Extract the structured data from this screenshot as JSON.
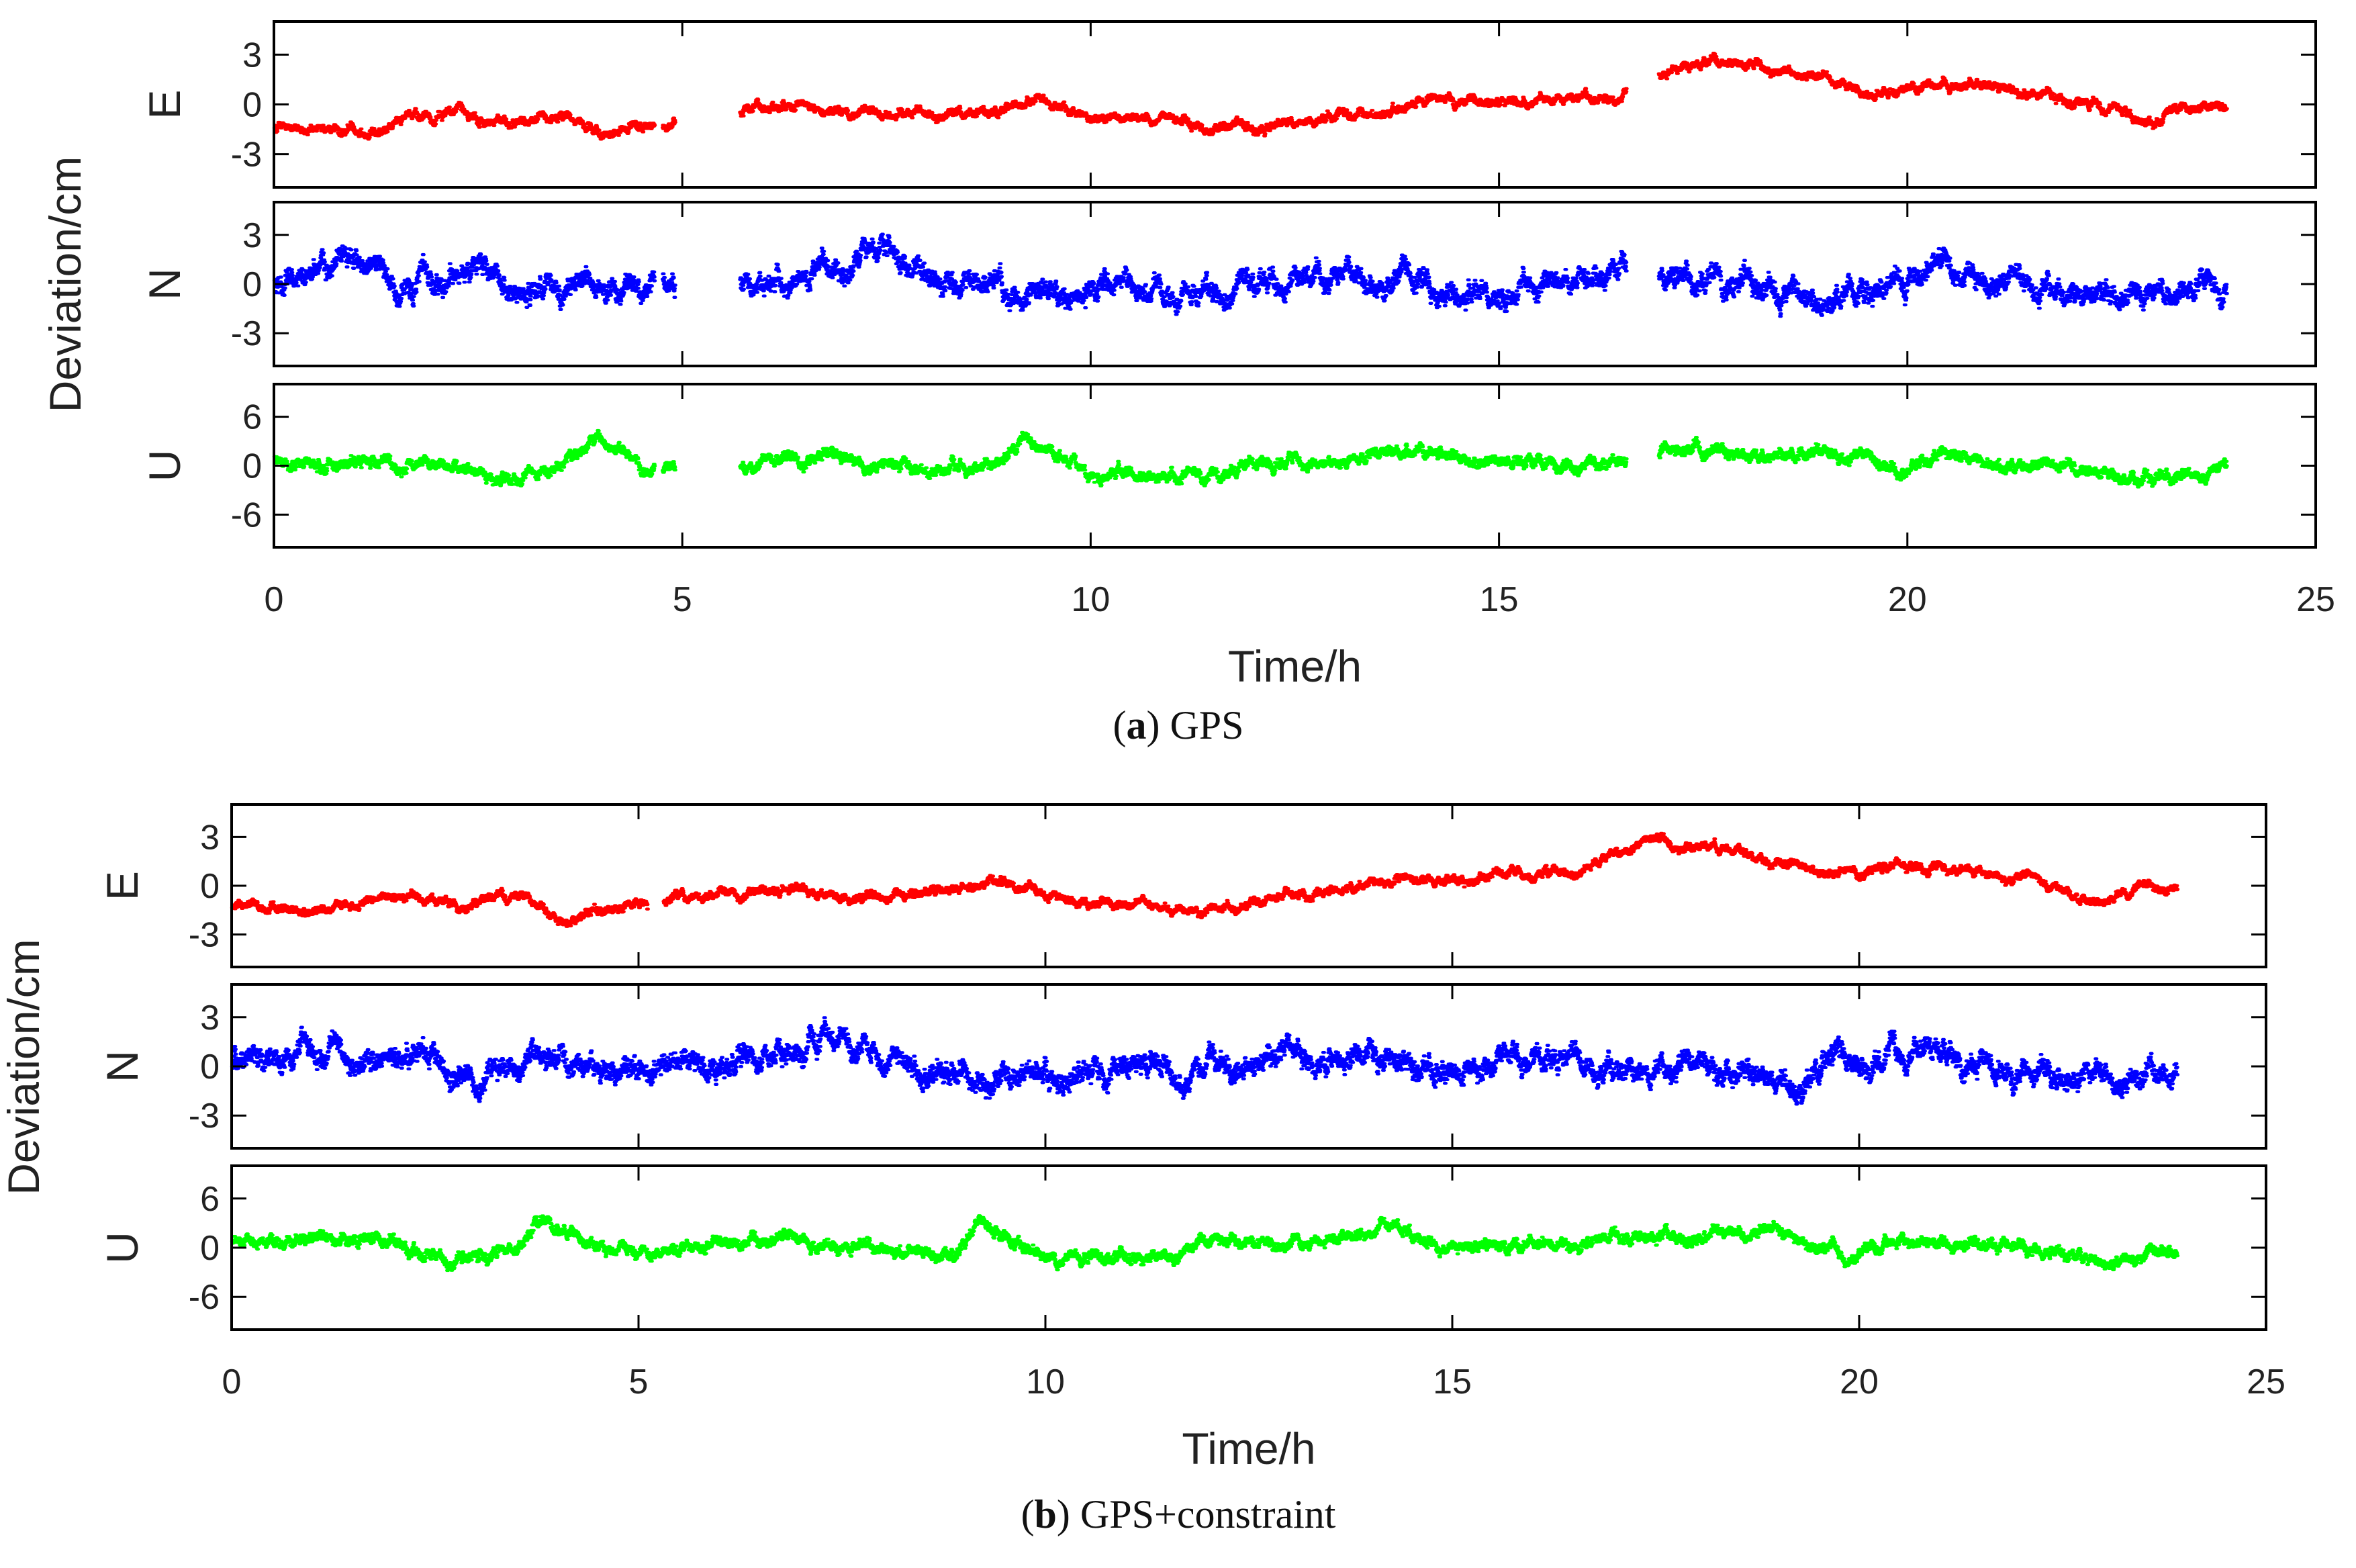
{
  "chart_data": [
    {
      "type": "scatter",
      "title": "",
      "caption": {
        "letter": "a",
        "text": "GPS"
      },
      "xlabel": "Time/h",
      "ylabel": "Deviation/cm",
      "xlim": [
        0,
        25
      ],
      "xticks": [
        0,
        5,
        10,
        15,
        20,
        25
      ],
      "grid": false,
      "legend": "none",
      "panels": [
        {
          "component": "E",
          "color": "#ff0000",
          "ylim": [
            -5,
            5
          ],
          "yticks": [
            -3,
            0,
            3
          ],
          "gaps": [
            [
              4.65,
              4.75
            ],
            [
              4.9,
              5.7
            ],
            [
              16.55,
              16.95
            ]
          ],
          "trend": [
            [
              0,
              -1.4
            ],
            [
              1,
              -1.6
            ],
            [
              2,
              -0.5
            ],
            [
              3,
              -1.2
            ],
            [
              3.5,
              -0.6
            ],
            [
              4,
              -1.9
            ],
            [
              4.9,
              -1.0
            ],
            [
              5.7,
              -0.4
            ],
            [
              6.5,
              -0.2
            ],
            [
              7.5,
              -0.6
            ],
            [
              8.5,
              -0.5
            ],
            [
              9.3,
              0.2
            ],
            [
              10,
              -0.6
            ],
            [
              11.5,
              -1.4
            ],
            [
              12,
              -1.5
            ],
            [
              13,
              -0.6
            ],
            [
              14,
              0.0
            ],
            [
              15.5,
              0.2
            ],
            [
              16.5,
              0.5
            ],
            [
              17,
              2.0
            ],
            [
              17.5,
              2.8
            ],
            [
              18,
              2.4
            ],
            [
              19,
              1.5
            ],
            [
              19.5,
              0.5
            ],
            [
              20,
              1.0
            ],
            [
              21,
              1.2
            ],
            [
              22,
              0.3
            ],
            [
              22.5,
              -0.2
            ],
            [
              23,
              -1.2
            ],
            [
              23.5,
              -0.1
            ],
            [
              23.9,
              -0.2
            ]
          ],
          "noise": 0.35
        },
        {
          "component": "N",
          "color": "#0000ff",
          "ylim": [
            -5,
            5
          ],
          "yticks": [
            -3,
            0,
            3
          ],
          "gaps": [
            [
              4.65,
              4.75
            ],
            [
              4.9,
              5.7
            ],
            [
              16.55,
              16.95
            ]
          ],
          "trend": [
            [
              0,
              0.0
            ],
            [
              1,
              1.0
            ],
            [
              1.5,
              0.0
            ],
            [
              2.5,
              0.5
            ],
            [
              3,
              -0.8
            ],
            [
              3.8,
              0.6
            ],
            [
              4.8,
              -0.8
            ],
            [
              5.7,
              0.0
            ],
            [
              6.5,
              0.5
            ],
            [
              7.5,
              2.5
            ],
            [
              8,
              0.0
            ],
            [
              9,
              -0.5
            ],
            [
              10,
              -0.5
            ],
            [
              11,
              0.0
            ],
            [
              12,
              0.0
            ],
            [
              13,
              0.5
            ],
            [
              14,
              0.5
            ],
            [
              15,
              -0.8
            ],
            [
              16,
              0.6
            ],
            [
              16.5,
              0.4
            ],
            [
              17,
              0.0
            ],
            [
              18,
              0.0
            ],
            [
              19,
              -1.0
            ],
            [
              19.5,
              -0.5
            ],
            [
              20.5,
              1.0
            ],
            [
              21,
              0.5
            ],
            [
              22,
              -0.3
            ],
            [
              23,
              -0.7
            ],
            [
              23.9,
              -0.4
            ]
          ],
          "noise": 0.85
        },
        {
          "component": "U",
          "color": "#00ff00",
          "ylim": [
            -10,
            10
          ],
          "yticks": [
            -6,
            0,
            6
          ],
          "gaps": [
            [
              4.65,
              4.75
            ],
            [
              4.9,
              5.7
            ],
            [
              16.55,
              16.95
            ]
          ],
          "trend": [
            [
              0,
              0.8
            ],
            [
              1,
              1.0
            ],
            [
              2,
              0.5
            ],
            [
              2.6,
              -2.0
            ],
            [
              3.5,
              0.0
            ],
            [
              3.9,
              3.5
            ],
            [
              4.5,
              0.0
            ],
            [
              4.9,
              0.0
            ],
            [
              5.7,
              0.0
            ],
            [
              6.5,
              1.0
            ],
            [
              7.7,
              0.0
            ],
            [
              8.5,
              -1.0
            ],
            [
              9.2,
              3.0
            ],
            [
              10,
              -1.0
            ],
            [
              11,
              -1.0
            ],
            [
              11.5,
              -1.5
            ],
            [
              12,
              1.0
            ],
            [
              13,
              0.0
            ],
            [
              14,
              2.0
            ],
            [
              15,
              0.0
            ],
            [
              16.5,
              0.5
            ],
            [
              17,
              2.0
            ],
            [
              18,
              1.0
            ],
            [
              19,
              1.5
            ],
            [
              19.9,
              -1.0
            ],
            [
              20.5,
              1.5
            ],
            [
              21,
              0.5
            ],
            [
              22,
              0.0
            ],
            [
              23,
              -2.0
            ],
            [
              23.9,
              -0.5
            ]
          ],
          "noise": 0.9
        }
      ]
    },
    {
      "type": "scatter",
      "title": "",
      "caption": {
        "letter": "b",
        "text": "GPS+constraint"
      },
      "xlabel": "Time/h",
      "ylabel": "Deviation/cm",
      "xlim": [
        0,
        25
      ],
      "xticks": [
        0,
        5,
        10,
        15,
        20,
        25
      ],
      "grid": false,
      "legend": "none",
      "panels": [
        {
          "component": "E",
          "color": "#ff0000",
          "ylim": [
            -5,
            5
          ],
          "yticks": [
            -3,
            0,
            3
          ],
          "gaps": [
            [
              5.1,
              5.3
            ]
          ],
          "trend": [
            [
              0,
              -1.4
            ],
            [
              1,
              -1.6
            ],
            [
              2,
              -0.5
            ],
            [
              3,
              -1.2
            ],
            [
              3.5,
              -0.6
            ],
            [
              4,
              -1.9
            ],
            [
              5,
              -1.0
            ],
            [
              5.5,
              -0.6
            ],
            [
              6.5,
              -0.2
            ],
            [
              7.5,
              -0.6
            ],
            [
              8.5,
              -0.5
            ],
            [
              9.3,
              0.3
            ],
            [
              10,
              -0.6
            ],
            [
              11.5,
              -1.4
            ],
            [
              12,
              -1.5
            ],
            [
              13,
              -0.6
            ],
            [
              14,
              0.0
            ],
            [
              15.5,
              0.5
            ],
            [
              16.5,
              1.0
            ],
            [
              17.5,
              2.8
            ],
            [
              18,
              2.4
            ],
            [
              19,
              1.5
            ],
            [
              19.5,
              0.5
            ],
            [
              20,
              1.0
            ],
            [
              21,
              1.2
            ],
            [
              22,
              0.3
            ],
            [
              22.5,
              -0.2
            ],
            [
              23,
              -1.2
            ],
            [
              23.5,
              -0.1
            ],
            [
              23.9,
              -0.2
            ]
          ],
          "noise": 0.35
        },
        {
          "component": "N",
          "color": "#0000ff",
          "ylim": [
            -5,
            5
          ],
          "yticks": [
            -3,
            0,
            3
          ],
          "gaps": [],
          "trend": [
            [
              0,
              0.0
            ],
            [
              1,
              1.0
            ],
            [
              1.5,
              0.0
            ],
            [
              2.5,
              0.5
            ],
            [
              3,
              -0.8
            ],
            [
              3.8,
              0.6
            ],
            [
              4.8,
              -0.5
            ],
            [
              5.5,
              0.0
            ],
            [
              6.5,
              0.5
            ],
            [
              7.4,
              2.5
            ],
            [
              8,
              0.0
            ],
            [
              9,
              -0.5
            ],
            [
              10,
              -0.5
            ],
            [
              11,
              0.0
            ],
            [
              12,
              0.0
            ],
            [
              13,
              0.5
            ],
            [
              14,
              0.5
            ],
            [
              15,
              -0.8
            ],
            [
              16,
              0.6
            ],
            [
              16.8,
              0.0
            ],
            [
              17,
              0.0
            ],
            [
              18,
              0.0
            ],
            [
              19,
              -1.0
            ],
            [
              19.5,
              -0.5
            ],
            [
              20.5,
              1.0
            ],
            [
              21,
              0.5
            ],
            [
              22,
              -0.3
            ],
            [
              23,
              -0.7
            ],
            [
              23.9,
              -0.4
            ]
          ],
          "noise": 0.85
        },
        {
          "component": "U",
          "color": "#00ff00",
          "ylim": [
            -10,
            10
          ],
          "yticks": [
            -6,
            0,
            6
          ],
          "gaps": [],
          "trend": [
            [
              0,
              0.8
            ],
            [
              1,
              1.0
            ],
            [
              2,
              0.5
            ],
            [
              2.6,
              -2.0
            ],
            [
              3.5,
              0.0
            ],
            [
              3.8,
              3.5
            ],
            [
              4.5,
              0.0
            ],
            [
              5,
              -1.0
            ],
            [
              5.5,
              0.0
            ],
            [
              6.5,
              1.0
            ],
            [
              7.7,
              0.0
            ],
            [
              8.8,
              -1.0
            ],
            [
              9.2,
              3.0
            ],
            [
              10,
              -1.0
            ],
            [
              11,
              -1.0
            ],
            [
              11.5,
              -1.5
            ],
            [
              12,
              1.0
            ],
            [
              13,
              0.0
            ],
            [
              14,
              2.0
            ],
            [
              15,
              0.0
            ],
            [
              16.5,
              0.5
            ],
            [
              17,
              2.0
            ],
            [
              18,
              1.0
            ],
            [
              19,
              1.5
            ],
            [
              19.9,
              -1.0
            ],
            [
              20.5,
              1.5
            ],
            [
              21,
              0.5
            ],
            [
              22,
              0.0
            ],
            [
              23,
              -2.0
            ],
            [
              23.9,
              -0.5
            ]
          ],
          "noise": 0.9
        }
      ]
    }
  ]
}
